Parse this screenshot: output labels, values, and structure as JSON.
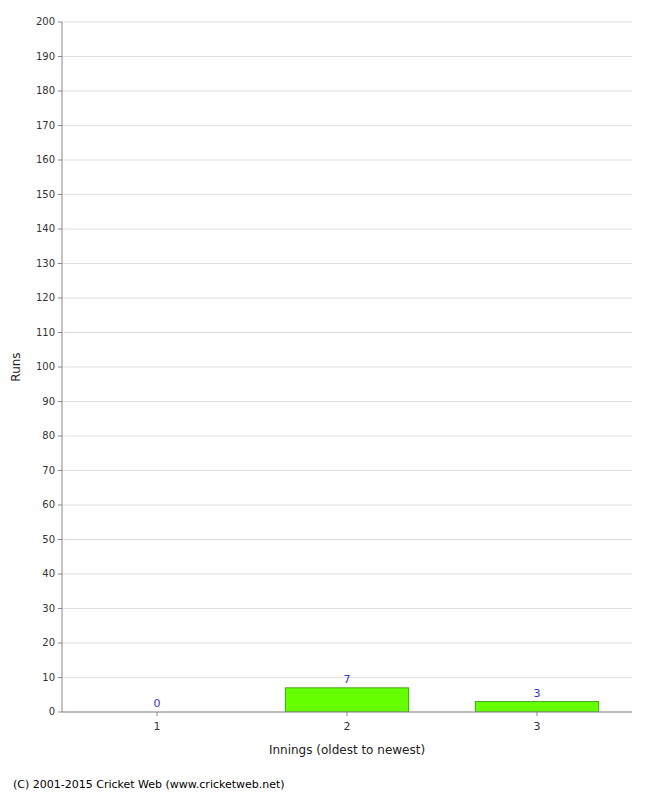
{
  "chart_data": {
    "type": "bar",
    "categories": [
      "1",
      "2",
      "3"
    ],
    "values": [
      0,
      7,
      3
    ],
    "color": "#66ff00",
    "xlabel": "Innings (oldest to newest)",
    "ylabel": "Runs",
    "ylim": [
      0,
      200
    ],
    "yticks": [
      0,
      10,
      20,
      30,
      40,
      50,
      60,
      70,
      80,
      90,
      100,
      110,
      120,
      130,
      140,
      150,
      160,
      170,
      180,
      190,
      200
    ],
    "grid": true,
    "data_labels": true,
    "annotations": [
      "(C) 2001-2015 Cricket Web (www.cricketweb.net)"
    ]
  }
}
